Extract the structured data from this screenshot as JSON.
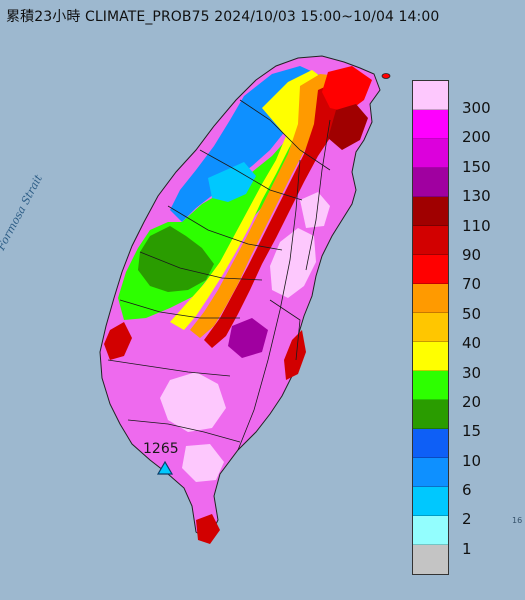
{
  "title": "累積23小時 CLIMATE_PROB75 2024/10/03 15:00~10/04 14:00",
  "labels": {
    "strait": "Formosa Strait",
    "station_value": "1265",
    "edge_mark": "16"
  },
  "legend": {
    "values": [
      "300",
      "200",
      "150",
      "130",
      "110",
      "90",
      "70",
      "50",
      "40",
      "30",
      "20",
      "15",
      "10",
      "6",
      "2",
      "1"
    ],
    "colors": [
      "#fdc8fd",
      "#fe00fe",
      "#dc00dc",
      "#a000a0",
      "#a00000",
      "#d20000",
      "#ff0000",
      "#ff9a00",
      "#ffc600",
      "#ffff00",
      "#2dff00",
      "#2a9c00",
      "#0e5ff6",
      "#0e90ff",
      "#00c8fe",
      "#93fefe",
      "#c4c4c4"
    ]
  },
  "colors": {
    "sea": "#9db8cf",
    "land_base": "#f07cf0"
  }
}
